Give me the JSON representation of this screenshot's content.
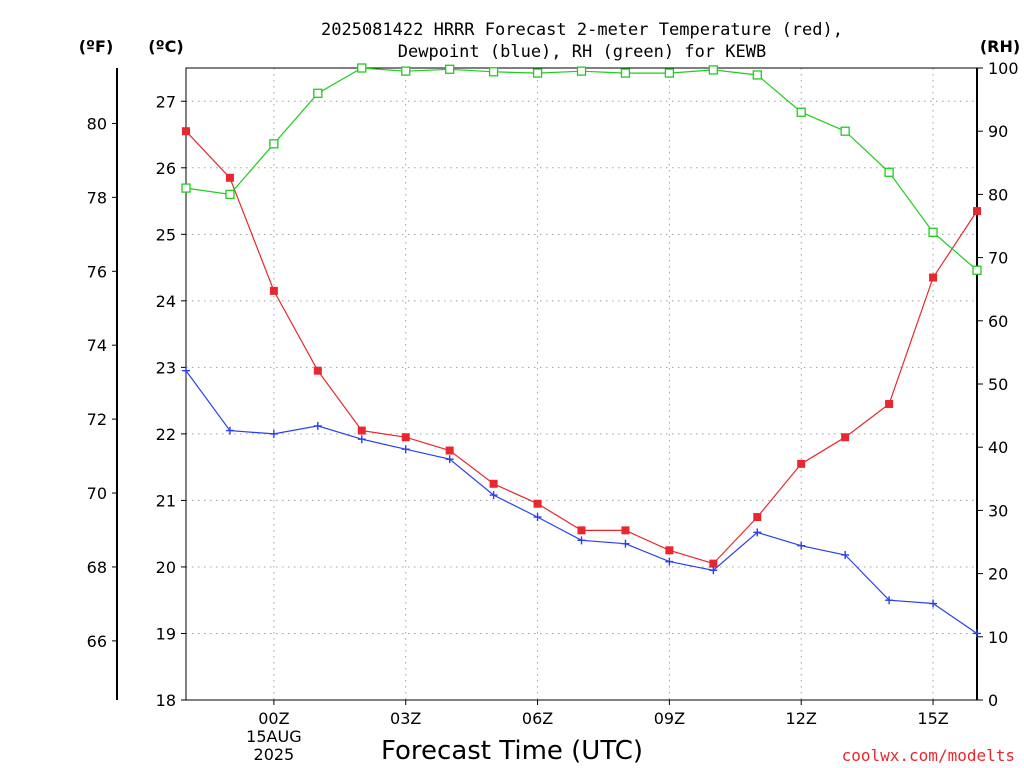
{
  "chart_data": {
    "type": "line",
    "title_line1": "2025081422 HRRR Forecast 2-meter Temperature (red),",
    "title_line2": "Dewpoint (blue), RH (green) for KEWB",
    "xlabel": "Forecast Time (UTC)",
    "credit": "coolwx.com/modelts",
    "units": {
      "fahrenheit": "(ºF)",
      "celsius": "(ºC)",
      "rh": "(RH)"
    },
    "x_hours": [
      -2,
      -1,
      0,
      1,
      2,
      3,
      4,
      5,
      6,
      7,
      8,
      9,
      10,
      11,
      12,
      13,
      14,
      15,
      16
    ],
    "x_ticks": [
      {
        "hour": 0,
        "label": "00Z"
      },
      {
        "hour": 3,
        "label": "03Z"
      },
      {
        "hour": 6,
        "label": "06Z"
      },
      {
        "hour": 9,
        "label": "09Z"
      },
      {
        "hour": 12,
        "label": "12Z"
      },
      {
        "hour": 15,
        "label": "15Z"
      }
    ],
    "date_label": [
      "15AUG",
      "2025"
    ],
    "xlim": [
      -2,
      16
    ],
    "ylim_celsius": [
      18,
      27.5
    ],
    "ylim_rh": [
      0,
      100
    ],
    "celsius_ticks": [
      "18",
      "19",
      "20",
      "21",
      "22",
      "23",
      "24",
      "25",
      "26",
      "27"
    ],
    "fahrenheit_ticks": [
      "66",
      "68",
      "70",
      "72",
      "74",
      "76",
      "78",
      "80"
    ],
    "rh_ticks": [
      "0",
      "10",
      "20",
      "30",
      "40",
      "50",
      "60",
      "70",
      "80",
      "90",
      "100"
    ],
    "grid": true,
    "series": [
      {
        "key": "temperature",
        "color": "#e8282e",
        "marker": "filled-square",
        "axis": "celsius",
        "values": [
          26.55,
          25.85,
          24.15,
          22.95,
          22.05,
          21.95,
          21.75,
          21.25,
          20.95,
          20.55,
          20.55,
          20.25,
          20.05,
          20.75,
          21.55,
          21.95,
          22.45,
          24.35,
          25.35
        ]
      },
      {
        "key": "dewpoint",
        "color": "#2a3ff0",
        "marker": "plus",
        "axis": "celsius",
        "values": [
          22.95,
          22.05,
          22.0,
          22.12,
          21.92,
          21.77,
          21.62,
          21.08,
          20.75,
          20.4,
          20.35,
          20.08,
          19.95,
          20.52,
          20.32,
          20.18,
          19.5,
          19.45,
          19.0
        ]
      },
      {
        "key": "rh",
        "color": "#1fcc1f",
        "marker": "open-square",
        "axis": "rh",
        "values": [
          81,
          80,
          88,
          96,
          100,
          99.5,
          99.8,
          99.4,
          99.2,
          99.5,
          99.2,
          99.2,
          99.7,
          98.9,
          93,
          90,
          83.5,
          74,
          68
        ]
      }
    ]
  }
}
